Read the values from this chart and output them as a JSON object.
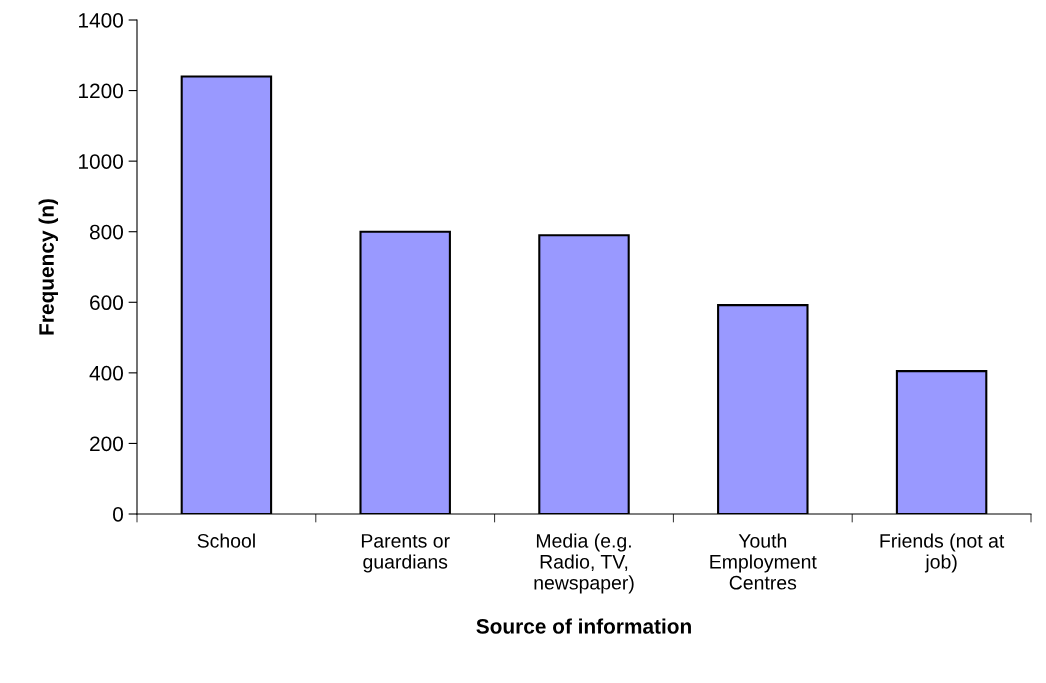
{
  "chart_data": {
    "type": "bar",
    "xlabel": "Source of information",
    "ylabel": "Frequency (n)",
    "categories": [
      "School",
      "Parents or\nguardians",
      "Media (e.g.\nRadio, TV,\nnewspaper)",
      "Youth\nEmployment\nCentres",
      "Friends (not at\njob)"
    ],
    "values": [
      1240,
      800,
      790,
      592,
      405
    ],
    "color": "#9999ff",
    "ylim": [
      0,
      1400
    ],
    "yticks": [
      0,
      200,
      400,
      600,
      800,
      1000,
      1200,
      1400
    ],
    "grid": false
  }
}
